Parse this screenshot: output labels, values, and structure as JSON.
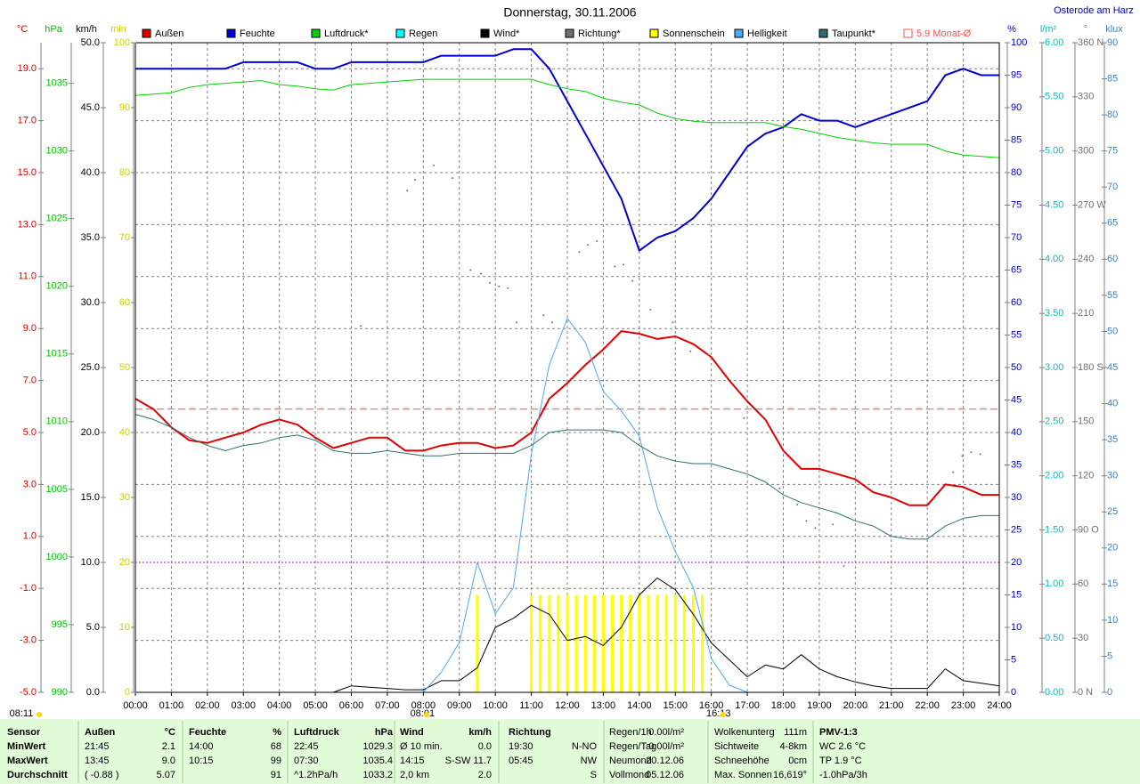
{
  "chart_data": {
    "type": "line",
    "title": "Donnerstag, 30.11.2006",
    "location": "Osterode am Harz",
    "xlim": [
      0,
      24
    ],
    "xticks": [
      {
        "value": 0,
        "label": "00:00"
      },
      {
        "value": 1,
        "label": "01:00"
      },
      {
        "value": 2,
        "label": "02:00"
      },
      {
        "value": 3,
        "label": "03:00"
      },
      {
        "value": 4,
        "label": "04:00"
      },
      {
        "value": 5,
        "label": "05:00"
      },
      {
        "value": 6,
        "label": "06:00"
      },
      {
        "value": 7,
        "label": "07:00"
      },
      {
        "value": 8,
        "label": "08:00"
      },
      {
        "value": 9,
        "label": "09:00"
      },
      {
        "value": 10,
        "label": "10:00"
      },
      {
        "value": 11,
        "label": "11:00"
      },
      {
        "value": 12,
        "label": "12:00"
      },
      {
        "value": 13,
        "label": "13:00"
      },
      {
        "value": 14,
        "label": "14:00"
      },
      {
        "value": 15,
        "label": "15:00"
      },
      {
        "value": 16,
        "label": "16:00"
      },
      {
        "value": 17,
        "label": "17:00"
      },
      {
        "value": 18,
        "label": "18:00"
      },
      {
        "value": 19,
        "label": "19:00"
      },
      {
        "value": 20,
        "label": "20:00"
      },
      {
        "value": 21,
        "label": "21:00"
      },
      {
        "value": 22,
        "label": "22:00"
      },
      {
        "value": 23,
        "label": "23:00"
      },
      {
        "value": 24,
        "label": "24:00"
      }
    ],
    "grid": true,
    "grid_axis": "temp",
    "axes": {
      "temp": {
        "unit": "°C",
        "color": "#e00000",
        "side": "left",
        "lim": [
          -5,
          20
        ],
        "ticks": [
          {
            "value": -5,
            "label": "-5.0"
          },
          {
            "value": -3,
            "label": "-3.0"
          },
          {
            "value": -1,
            "label": "-1.0"
          },
          {
            "value": 1,
            "label": "1.0"
          },
          {
            "value": 3,
            "label": "3.0"
          },
          {
            "value": 5,
            "label": "5.0"
          },
          {
            "value": 7,
            "label": "7.0"
          },
          {
            "value": 9,
            "label": "9.0"
          },
          {
            "value": 11,
            "label": "11.0"
          },
          {
            "value": 13,
            "label": "13.0"
          },
          {
            "value": 15,
            "label": "15.0"
          },
          {
            "value": 17,
            "label": "17.0"
          },
          {
            "value": 19,
            "label": "19.0"
          }
        ]
      },
      "pressure": {
        "unit": "hPa",
        "color": "#00c000",
        "side": "left",
        "lim": [
          990,
          1038
        ],
        "ticks": [
          990,
          995,
          1000,
          1005,
          1010,
          1015,
          1020,
          1025,
          1030,
          1035
        ]
      },
      "wind": {
        "unit": "km/h",
        "color": "#000000",
        "side": "left",
        "lim": [
          0,
          50
        ],
        "ticks": [
          {
            "value": 0,
            "label": "0.0"
          },
          {
            "value": 5,
            "label": "5.0"
          },
          {
            "value": 10,
            "label": "10.0"
          },
          {
            "value": 15,
            "label": "15.0"
          },
          {
            "value": 20,
            "label": "20.0"
          },
          {
            "value": 25,
            "label": "25.0"
          },
          {
            "value": 30,
            "label": "30.0"
          },
          {
            "value": 35,
            "label": "35.0"
          },
          {
            "value": 40,
            "label": "40.0"
          },
          {
            "value": 45,
            "label": "45.0"
          },
          {
            "value": 50,
            "label": "50.0"
          }
        ]
      },
      "sun": {
        "unit": "min",
        "color": "#d0d000",
        "side": "left",
        "lim": [
          0,
          100
        ],
        "ticks": [
          0,
          10,
          20,
          30,
          40,
          50,
          60,
          70,
          80,
          90,
          100
        ]
      },
      "humidity": {
        "unit": "%",
        "color": "#0000c0",
        "side": "right",
        "lim": [
          0,
          100
        ],
        "ticks": [
          0,
          5,
          10,
          15,
          20,
          25,
          30,
          35,
          40,
          45,
          50,
          55,
          60,
          65,
          70,
          75,
          80,
          85,
          90,
          95,
          100
        ]
      },
      "rain": {
        "unit": "l/m²",
        "color": "#00c0c0",
        "side": "right",
        "lim": [
          0,
          6
        ],
        "ticks": [
          {
            "value": 0,
            "label": "0.00"
          },
          {
            "value": 0.5,
            "label": "0.50"
          },
          {
            "value": 1,
            "label": "1.00"
          },
          {
            "value": 1.5,
            "label": "1.50"
          },
          {
            "value": 2,
            "label": "2.00"
          },
          {
            "value": 2.5,
            "label": "2.50"
          },
          {
            "value": 3,
            "label": "3.00"
          },
          {
            "value": 3.5,
            "label": "3.50"
          },
          {
            "value": 4,
            "label": "4.00"
          },
          {
            "value": 4.5,
            "label": "4.50"
          },
          {
            "value": 5,
            "label": "5.00"
          },
          {
            "value": 5.5,
            "label": "5.50"
          },
          {
            "value": 6,
            "label": "6.00"
          }
        ]
      },
      "direction": {
        "unit": "°",
        "color": "#707070",
        "side": "right",
        "lim": [
          0,
          360
        ],
        "ticks": [
          {
            "value": 0,
            "label": "0 N"
          },
          30,
          60,
          {
            "value": 90,
            "label": "90 O"
          },
          120,
          150,
          {
            "value": 180,
            "label": "180 S"
          },
          210,
          240,
          {
            "value": 270,
            "label": "270 W"
          },
          300,
          330,
          {
            "value": 360,
            "label": "360 N"
          }
        ]
      },
      "light": {
        "unit": "klux",
        "color": "#4080c0",
        "side": "right",
        "lim": [
          0,
          90
        ],
        "ticks": [
          0,
          5,
          10,
          15,
          20,
          25,
          30,
          35,
          40,
          45,
          50,
          55,
          60,
          65,
          70,
          75,
          80,
          85,
          90
        ]
      }
    },
    "x": [
      0,
      0.5,
      1,
      1.5,
      2,
      2.5,
      3,
      3.5,
      4,
      4.5,
      5,
      5.5,
      6,
      6.5,
      7,
      7.5,
      8,
      8.5,
      9,
      9.5,
      10,
      10.5,
      11,
      11.5,
      12,
      12.5,
      13,
      13.5,
      14,
      14.5,
      15,
      15.5,
      16,
      16.5,
      17,
      17.5,
      18,
      18.5,
      19,
      19.5,
      20,
      20.5,
      21,
      21.5,
      22,
      22.5,
      23,
      23.5,
      24
    ],
    "series": [
      {
        "name": "Außen",
        "color": "#e00000",
        "axis": "temp",
        "type": "line",
        "line_width": 2,
        "values": [
          6.3,
          5.9,
          5.2,
          4.7,
          4.6,
          4.8,
          5.0,
          5.3,
          5.5,
          5.3,
          4.8,
          4.4,
          4.6,
          4.8,
          4.8,
          4.3,
          4.3,
          4.5,
          4.6,
          4.6,
          4.4,
          4.5,
          5.0,
          6.3,
          6.9,
          7.6,
          8.2,
          8.9,
          8.8,
          8.6,
          8.7,
          8.4,
          7.9,
          7.0,
          6.2,
          5.5,
          4.3,
          3.6,
          3.6,
          3.4,
          3.2,
          2.7,
          2.5,
          2.2,
          2.2,
          3.0,
          2.9,
          2.6,
          2.6
        ]
      },
      {
        "name": "Feuchte",
        "color": "#0000d0",
        "axis": "humidity",
        "type": "line",
        "line_width": 2,
        "values": [
          96,
          96,
          96,
          96,
          96,
          96,
          97,
          97,
          97,
          97,
          96,
          96,
          97,
          97,
          97,
          97,
          97,
          98,
          98,
          98,
          98,
          99,
          99,
          96,
          91,
          86,
          81,
          76,
          68,
          70,
          71,
          73,
          76,
          80,
          84,
          86,
          87,
          89,
          88,
          88,
          87,
          88,
          89,
          90,
          91,
          95,
          96,
          95,
          95
        ]
      },
      {
        "name": "Luftdruck*",
        "color": "#00d000",
        "axis": "pressure",
        "type": "line",
        "line_width": 1,
        "values": [
          1034.1,
          1034.2,
          1034.3,
          1034.7,
          1034.9,
          1035.0,
          1035.1,
          1035.2,
          1034.9,
          1034.8,
          1034.6,
          1034.5,
          1034.9,
          1035.0,
          1035.1,
          1035.2,
          1035.3,
          1035.3,
          1035.3,
          1035.3,
          1035.3,
          1035.3,
          1035.3,
          1034.9,
          1034.6,
          1034.4,
          1033.9,
          1033.6,
          1033.4,
          1032.8,
          1032.4,
          1032.2,
          1032.1,
          1032.1,
          1032.1,
          1032.1,
          1031.8,
          1031.6,
          1031.3,
          1031.0,
          1030.8,
          1030.6,
          1030.5,
          1030.5,
          1030.5,
          1030.0,
          1029.7,
          1029.6,
          1029.5
        ]
      },
      {
        "name": "Regen",
        "color": "#00ffff",
        "axis": "rain",
        "type": "line",
        "line_width": 1
      },
      {
        "name": "Wind*",
        "color": "#000000",
        "axis": "wind",
        "type": "line",
        "line_width": 1,
        "values": [
          0,
          0,
          0,
          0,
          0,
          0,
          0,
          0,
          0,
          0,
          0,
          0,
          0.5,
          0.4,
          0.3,
          0.2,
          0.2,
          0.9,
          0.9,
          1.9,
          5.0,
          5.7,
          6.7,
          6.0,
          4.0,
          4.3,
          3.6,
          5.0,
          7.5,
          8.8,
          7.9,
          6.0,
          3.8,
          2.5,
          1.2,
          2.1,
          1.8,
          2.9,
          1.8,
          1.2,
          0.8,
          0.5,
          0.3,
          0.3,
          0.3,
          1.8,
          0.9,
          0.7,
          0.5
        ]
      },
      {
        "name": "Richtung*",
        "color": "#707070",
        "axis": "direction",
        "type": "scatter",
        "x": [
          6.26,
          7.55,
          7.77,
          8.29,
          8.81,
          9.31,
          9.6,
          9.85,
          10.1,
          10.35,
          10.59,
          11.34,
          11.58,
          12.33,
          12.57,
          12.82,
          13.32,
          13.56,
          13.81,
          14.31,
          14.93,
          15.42,
          15.92,
          16.91,
          17.9,
          18.39,
          18.64,
          18.89,
          19.38,
          19.68,
          22.72,
          22.97,
          23.22,
          23.47
        ],
        "values": [
          203,
          278,
          284,
          292,
          285,
          234,
          232,
          227,
          225,
          224,
          205,
          209,
          205,
          244,
          248,
          250,
          236,
          237,
          228,
          212,
          205,
          189,
          187,
          152,
          113,
          104,
          95,
          91,
          93,
          70,
          122,
          131,
          133,
          132
        ]
      },
      {
        "name": "Sonnenschein",
        "color": "#ffff00",
        "axis": "sun",
        "type": "bar",
        "x": [
          9.5,
          11,
          11.25,
          11.5,
          11.75,
          12,
          12.25,
          12.5,
          12.75,
          13,
          13.25,
          13.5,
          13.75,
          14,
          14.25,
          14.5,
          14.75,
          15,
          15.25,
          15.5,
          15.75
        ],
        "values": [
          15,
          15,
          15,
          15,
          15,
          15,
          15,
          15,
          15,
          15,
          15,
          15,
          15,
          15,
          15,
          15,
          15,
          15,
          15,
          15,
          15
        ]
      },
      {
        "name": "Helligkeit",
        "color": "#50a8f0",
        "axis": "light",
        "type": "line",
        "line_width": 1,
        "values": [
          0,
          0,
          0,
          0,
          0,
          0,
          0,
          0,
          0,
          0,
          0,
          0,
          0,
          0,
          0,
          0,
          0,
          2.8,
          6.9,
          18.0,
          10.9,
          14.5,
          33.0,
          45.4,
          51.8,
          48.5,
          41.7,
          39.0,
          35.5,
          25.6,
          19.5,
          14.5,
          4.7,
          1.0,
          0,
          0,
          0,
          0,
          0,
          0,
          0,
          0,
          0,
          0,
          0,
          0,
          0,
          0,
          0
        ]
      },
      {
        "name": "Taupunkt*",
        "color": "#2f6f6f",
        "axis": "temp",
        "type": "line",
        "line_width": 1,
        "values": [
          5.7,
          5.5,
          5.2,
          4.8,
          4.5,
          4.3,
          4.5,
          4.6,
          4.8,
          4.9,
          4.7,
          4.3,
          4.2,
          4.2,
          4.3,
          4.2,
          4.1,
          4.1,
          4.2,
          4.2,
          4.2,
          4.2,
          4.5,
          5.0,
          5.1,
          5.1,
          5.1,
          5.0,
          4.5,
          4.1,
          3.9,
          3.8,
          3.8,
          3.6,
          3.4,
          3.1,
          2.6,
          2.3,
          2.1,
          1.9,
          1.6,
          1.4,
          1.0,
          0.9,
          0.9,
          1.4,
          1.7,
          1.8,
          1.8
        ]
      }
    ],
    "reference_lines": [
      {
        "name": "5.9 Monat-Ø",
        "value": 5.9,
        "axis": "temp",
        "color": "#ff5050"
      }
    ],
    "sun_times": {
      "day_length": "08:11",
      "sunrise": "08:01",
      "sunset": "16:13"
    }
  },
  "summary": {
    "columns": [
      {
        "header": "Sensor",
        "rows": [
          "MinWert",
          "MaxWert",
          "Durchschnitt"
        ]
      },
      {
        "header": [
          "Außen",
          "°C"
        ],
        "rows": [
          [
            "21:45",
            "2.1"
          ],
          [
            "13:45",
            "9.0"
          ],
          [
            "( -0.88 )",
            "5.07"
          ]
        ]
      },
      {
        "header": [
          "Feuchte",
          "%"
        ],
        "rows": [
          [
            "14:00",
            "68"
          ],
          [
            "10:15",
            "99"
          ],
          [
            null,
            "91"
          ]
        ]
      },
      {
        "header": [
          "Luftdruck",
          "hPa"
        ],
        "rows": [
          [
            "22:45",
            "1029.3"
          ],
          [
            "07:30",
            "1035.4"
          ],
          [
            "^1.2hPa/h",
            "1033.2"
          ]
        ]
      },
      {
        "header": [
          "Wind",
          "km/h"
        ],
        "rows": [
          [
            "Ø 10 min.",
            "0.0"
          ],
          [
            "14:15",
            "S-SW 11.7"
          ],
          [
            "2,0 km",
            "2.0"
          ]
        ]
      },
      {
        "header": [
          "Richtung",
          null
        ],
        "rows": [
          [
            "19:30",
            "N-NO"
          ],
          [
            "05:45",
            "NW"
          ],
          [
            null,
            "S"
          ]
        ]
      },
      {
        "rows": [
          [
            "Regen/1h",
            "0.00l/m²"
          ],
          [
            "Regen/Tag",
            "0.00l/m²"
          ],
          [
            "Neumond",
            "20.12.06"
          ],
          [
            "Vollmond",
            "05.12.06"
          ]
        ]
      },
      {
        "rows": [
          [
            "Wolkenunterg",
            "111m"
          ],
          [
            "Sichtweite",
            "4-8km"
          ],
          [
            "Schneehöhe",
            "0cm"
          ],
          [
            "Max. Sonnen",
            "16,619°"
          ]
        ]
      },
      {
        "header": "PMV-1:3",
        "rows": [
          "WC 2.6 °C",
          "TP 1.9 °C",
          "-1.0hPa/3h"
        ]
      }
    ]
  }
}
